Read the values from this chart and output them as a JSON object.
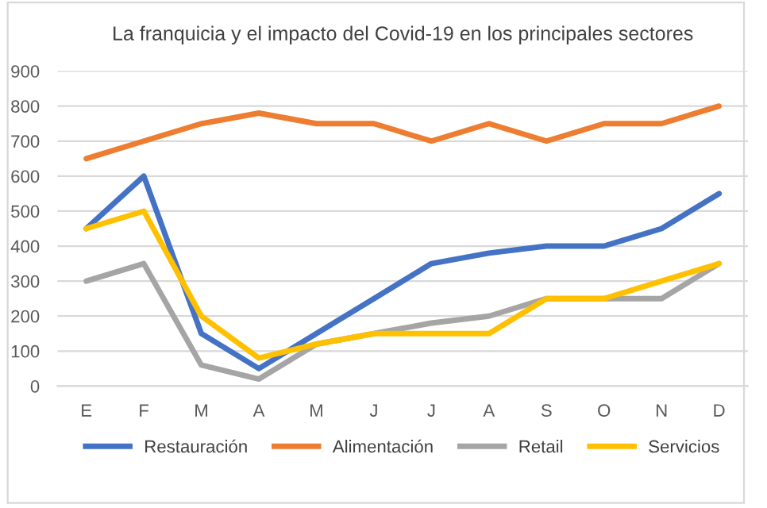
{
  "chart_data": {
    "type": "line",
    "title": "La franquicia y el impacto del Covid-19 en los principales sectores",
    "categories": [
      "E",
      "F",
      "M",
      "A",
      "M",
      "J",
      "J",
      "A",
      "S",
      "O",
      "N",
      "D"
    ],
    "series": [
      {
        "name": "Restauración",
        "color": "#4472c4",
        "values": [
          450,
          600,
          150,
          50,
          150,
          250,
          350,
          380,
          400,
          400,
          450,
          550
        ]
      },
      {
        "name": "Alimentación",
        "color": "#ed7d31",
        "values": [
          650,
          700,
          750,
          780,
          750,
          750,
          700,
          750,
          700,
          750,
          750,
          800
        ]
      },
      {
        "name": "Retail",
        "color": "#a5a5a5",
        "values": [
          300,
          350,
          60,
          20,
          120,
          150,
          180,
          200,
          250,
          250,
          250,
          350
        ]
      },
      {
        "name": "Servicios",
        "color": "#ffc000",
        "values": [
          450,
          500,
          200,
          80,
          120,
          150,
          150,
          150,
          250,
          250,
          300,
          350
        ]
      }
    ],
    "ylim": [
      0,
      900
    ],
    "yticks": [
      0,
      100,
      200,
      300,
      400,
      500,
      600,
      700,
      800,
      900
    ],
    "grid": "y",
    "legend": "bottom",
    "marker": "none",
    "line_style": "solid"
  }
}
